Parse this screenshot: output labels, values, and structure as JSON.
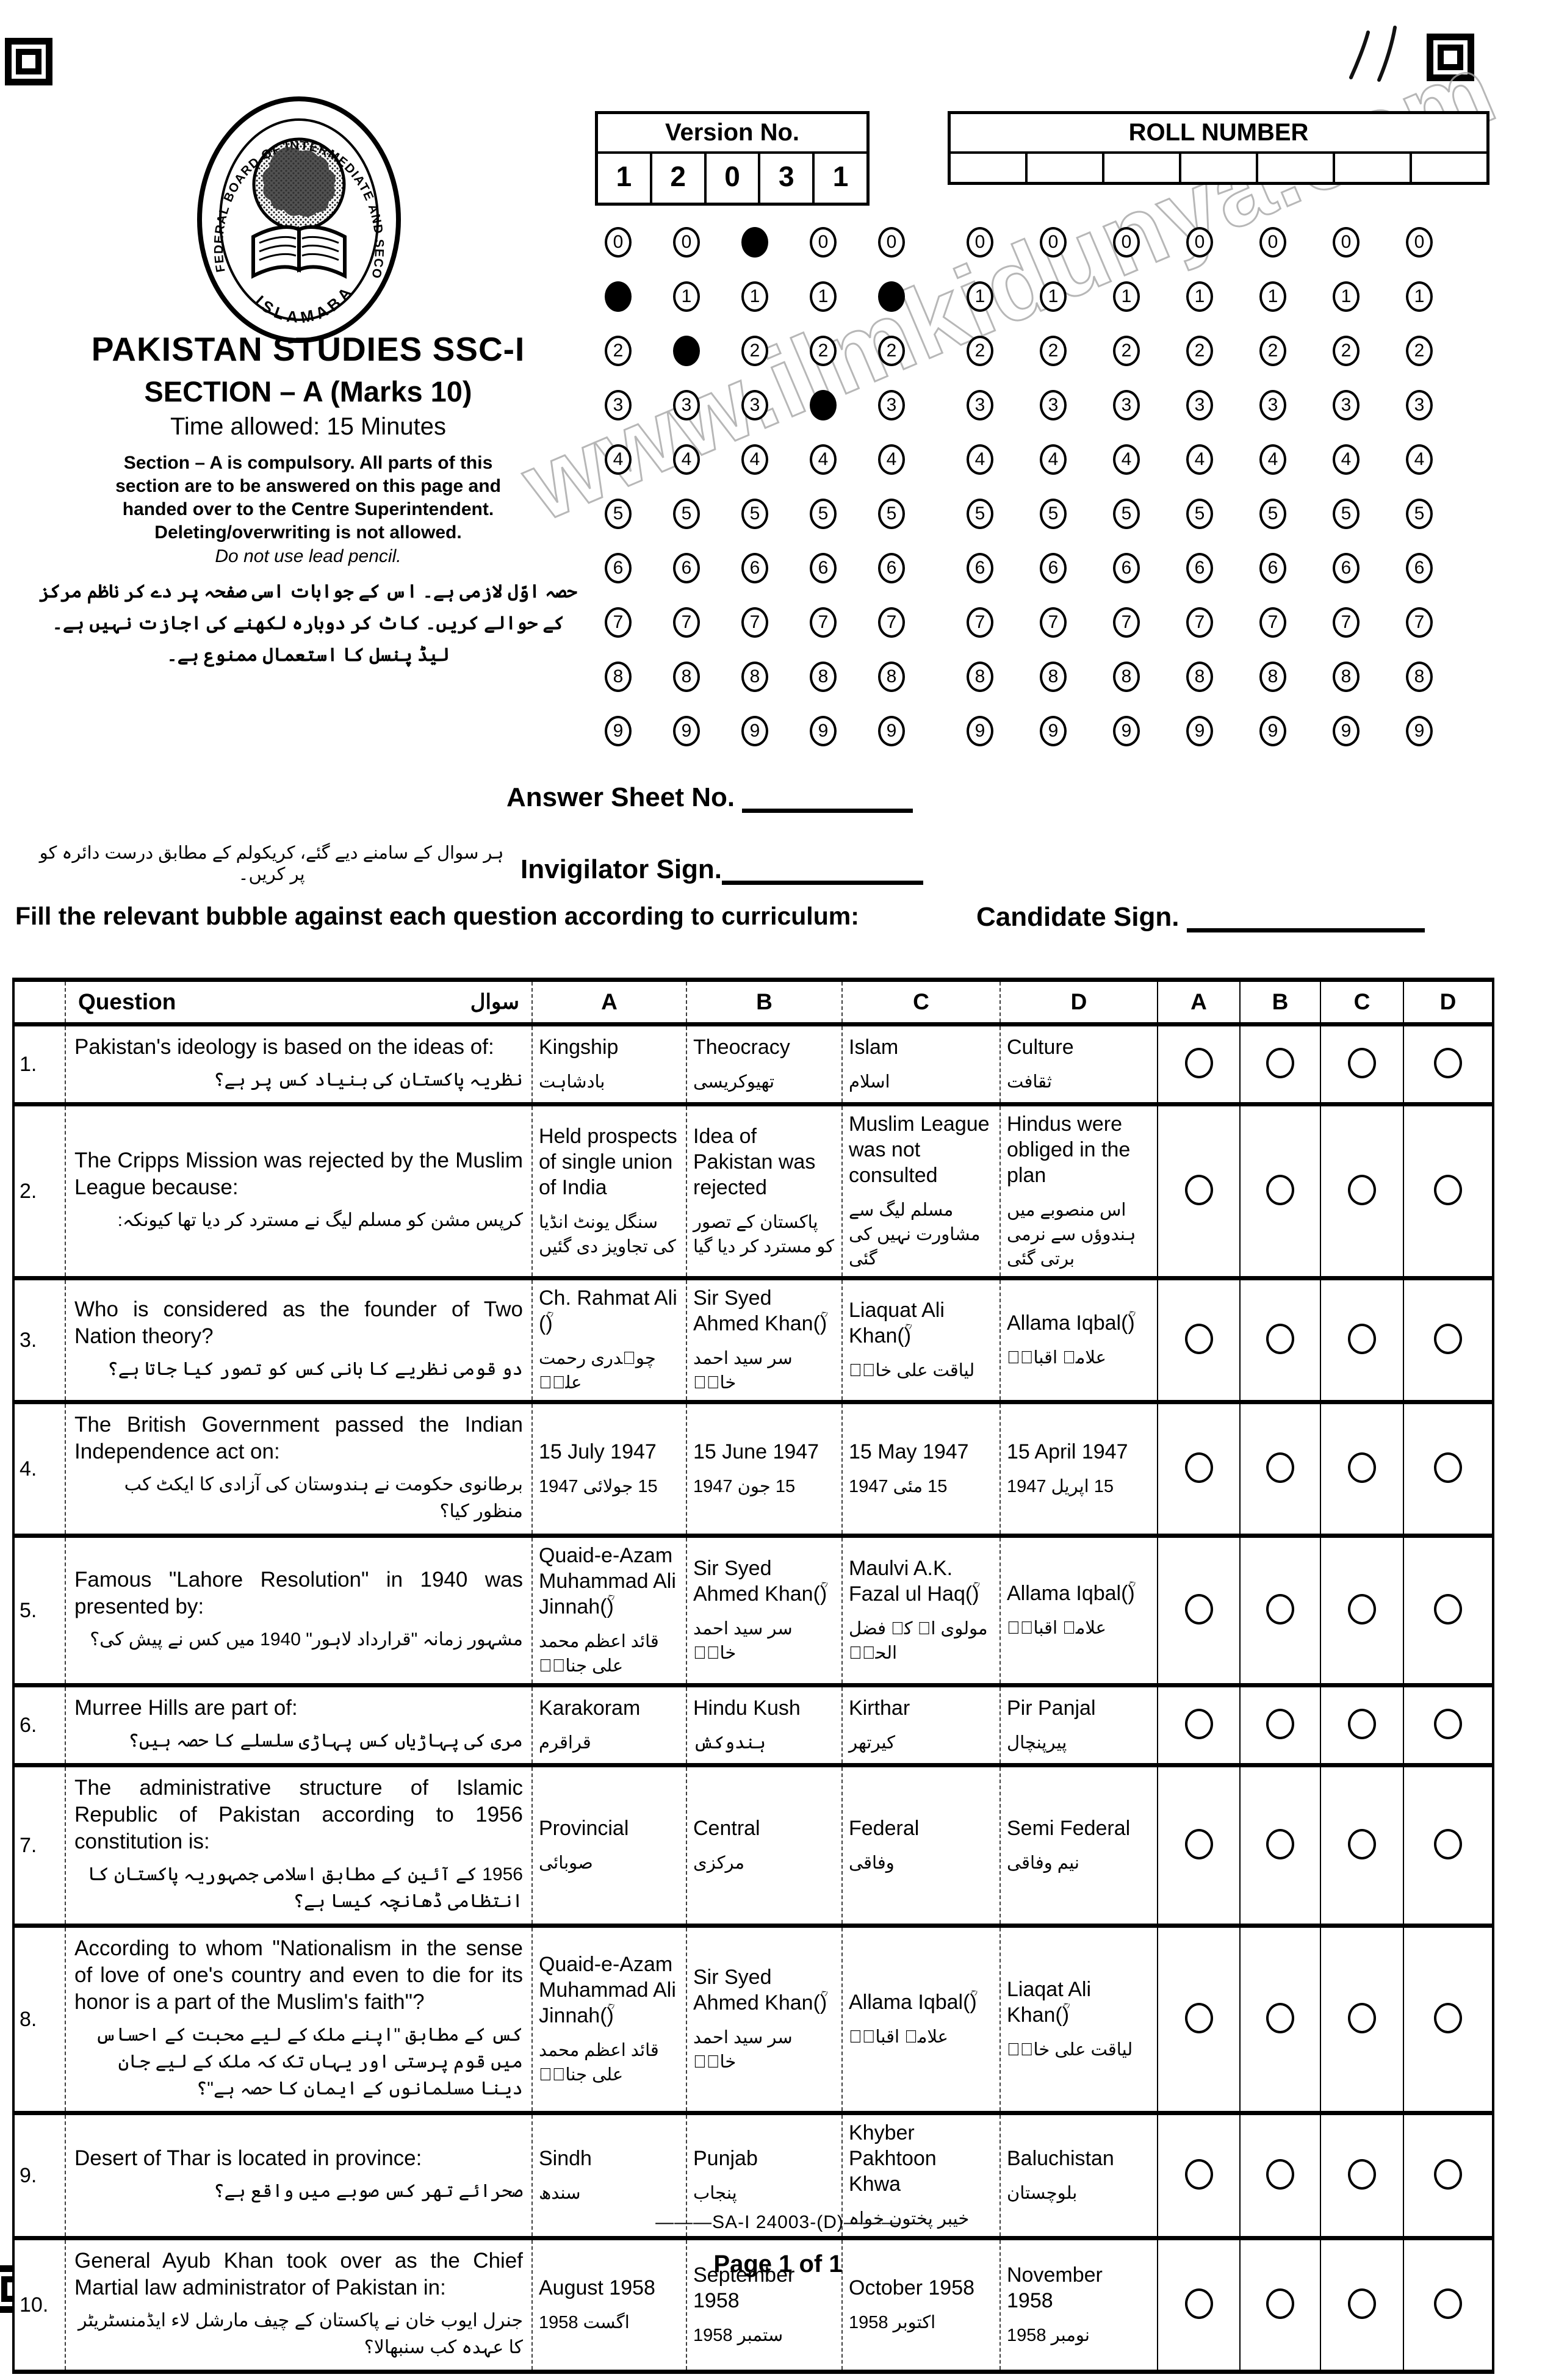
{
  "page": {
    "watermark_text": "www.ilmkidunya.com",
    "handwritten_mark": "١١",
    "footer_code": "———SA-I 24003-(D)———",
    "footer_page": "Page 1 of 1"
  },
  "logo": {
    "ring_text": "FEDERAL BOARD OF INTERMEDIATE AND SECONDARY EDUCATION",
    "ring_bottom": "ISLAMABAD"
  },
  "header": {
    "title": "PAKISTAN STUDIES SSC-I",
    "section": "SECTION – A (Marks 10)",
    "time": "Time allowed: 15 Minutes",
    "instructions_en": [
      "Section – A is compulsory. All parts of this",
      "section are to be answered on this page and",
      "handed over to the Centre Superintendent.",
      "Deleting/overwriting is not allowed."
    ],
    "instructions_italic": "Do not use lead pencil.",
    "instructions_ur": "حصہ اوّل لازمی ہے۔ اس کے جوابات اسی صفحہ پر دے کر ناظم مرکز کے حوالے کریں۔ کاٹ کر دوبارہ لکھنے کی اجازت نہیں ہے۔ لیڈ پنسل کا استعمال ممنوع ہے۔"
  },
  "version": {
    "label": "Version No.",
    "digits": [
      "1",
      "2",
      "0",
      "3",
      "1"
    ]
  },
  "roll": {
    "label": "ROLL NUMBER",
    "cells": 7
  },
  "bubble_digits": [
    "0",
    "1",
    "2",
    "3",
    "4",
    "5",
    "6",
    "7",
    "8",
    "9"
  ],
  "signs": {
    "answer_sheet_label": "Answer Sheet No.",
    "invigilator_ur": "ہر سوال کے سامنے دیے گئے، کریکولم کے مطابق درست دائرہ کو پر کریں۔",
    "invigilator_label": "Invigilator Sign.",
    "fill_instruction": "Fill the relevant bubble against each question according to curriculum:",
    "candidate_label": "Candidate Sign."
  },
  "table": {
    "col_question": "Question",
    "col_question_ur": "سوال",
    "option_cols": [
      "A",
      "B",
      "C",
      "D"
    ],
    "bubble_cols": [
      "A",
      "B",
      "C",
      "D"
    ],
    "questions": [
      {
        "no": "1.",
        "en": "Pakistan's ideology is based on the ideas of:",
        "ur": "نظریہ پاکستان کی بنیاد کس پر ہے؟",
        "options": [
          {
            "en": "Kingship",
            "ur": "بادشاہت"
          },
          {
            "en": "Theocracy",
            "ur": "تھیوکریسی"
          },
          {
            "en": "Islam",
            "ur": "اسلام"
          },
          {
            "en": "Culture",
            "ur": "ثقافت"
          }
        ]
      },
      {
        "no": "2.",
        "en": "The Cripps Mission was rejected by the Muslim League because:",
        "ur": "کرپس مشن کو مسلم لیگ نے مسترد کر دیا تھا کیونکہ:",
        "options": [
          {
            "en": "Held prospects of single union of India",
            "ur": "سنگل یونٹ انڈیا کی تجاویز دی گئیں"
          },
          {
            "en": "Idea of Pakistan was rejected",
            "ur": "پاکستان کے تصور کو مسترد کر دیا گیا"
          },
          {
            "en": "Muslim League was not consulted",
            "ur": "مسلم لیگ سے مشاورت نہیں کی گئی"
          },
          {
            "en": "Hindus were obliged in the plan",
            "ur": "اس منصوبے میں ہندوؤں سے نرمی برتی گئی"
          }
        ]
      },
      {
        "no": "3.",
        "en": "Who is considered as the founder of Two Nation theory?",
        "ur": "دو قومی نظریے کا بانی کس کو تصور کیا جاتا ہے؟",
        "options": [
          {
            "en": "Ch. Rahmat Ali (ؒ)",
            "ur": "چوہدری رحمت علیؒ"
          },
          {
            "en": "Sir Syed Ahmed Khan(ؒ)",
            "ur": "سر سید احمد خانؒ"
          },
          {
            "en": "Liaquat Ali Khan(ؒ)",
            "ur": "لیاقت علی خانؒ"
          },
          {
            "en": "Allama Iqbal(ؒ)",
            "ur": "علامہ اقبالؒ"
          }
        ]
      },
      {
        "no": "4.",
        "en": "The British Government passed the Indian Independence act on:",
        "ur": "برطانوی حکومت نے ہندوستان کی آزادی کا ایکٹ کب منظور کیا؟",
        "options": [
          {
            "en": "15 July 1947",
            "ur": "15 جولائی 1947"
          },
          {
            "en": "15 June 1947",
            "ur": "15 جون 1947"
          },
          {
            "en": "15 May 1947",
            "ur": "15 مئی 1947"
          },
          {
            "en": "15 April 1947",
            "ur": "15 اپریل 1947"
          }
        ]
      },
      {
        "no": "5.",
        "en": "Famous \"Lahore Resolution\" in 1940 was presented by:",
        "ur": "مشہور زمانہ \"قرارداد لاہور\" 1940 میں کس نے پیش کی؟",
        "options": [
          {
            "en": "Quaid-e-Azam Muhammad Ali Jinnah(ؒ)",
            "ur": "قائد اعظم محمد علی جناحؒ"
          },
          {
            "en": "Sir Syed Ahmed Khan(ؒ)",
            "ur": "سر سید احمد خانؒ"
          },
          {
            "en": "Maulvi A.K. Fazal ul Haq(ؒ)",
            "ur": "مولوی اے کے فضل الحقؒ"
          },
          {
            "en": "Allama Iqbal(ؒ)",
            "ur": "علامہ اقبالؒ"
          }
        ]
      },
      {
        "no": "6.",
        "en": "Murree Hills are part of:",
        "ur": "مری کی پہاڑیاں کس پہاڑی سلسلے کا حصہ ہیں؟",
        "options": [
          {
            "en": "Karakoram",
            "ur": "قراقرم"
          },
          {
            "en": "Hindu Kush",
            "ur": "ہندوکش"
          },
          {
            "en": "Kirthar",
            "ur": "کیرتھر"
          },
          {
            "en": "Pir Panjal",
            "ur": "پیرپنچال"
          }
        ]
      },
      {
        "no": "7.",
        "en": "The administrative structure of Islamic Republic of Pakistan according to 1956 constitution is:",
        "ur": "1956 کے آئین کے مطابق اسلامی جمہوریہ پاکستان کا انتظامی ڈھانچہ کیسا ہے؟",
        "options": [
          {
            "en": "Provincial",
            "ur": "صوبائی"
          },
          {
            "en": "Central",
            "ur": "مرکزی"
          },
          {
            "en": "Federal",
            "ur": "وفاقی"
          },
          {
            "en": "Semi Federal",
            "ur": "نیم وفاقی"
          }
        ]
      },
      {
        "no": "8.",
        "en": "According to whom \"Nationalism in the sense of love of one's country and even to die for its honor is a part of the Muslim's faith\"?",
        "ur": "کس کے مطابق \"اپنے ملک کے لیے محبت کے احساس میں قوم پرستی اور یہاں تک کہ ملک کے لیے جان دینا مسلمانوں کے ایمان کا حصہ ہے\"؟",
        "options": [
          {
            "en": "Quaid-e-Azam Muhammad Ali Jinnah(ؒ)",
            "ur": "قائد اعظم محمد علی جناحؒ"
          },
          {
            "en": "Sir Syed Ahmed Khan(ؒ)",
            "ur": "سر سید احمد خانؒ"
          },
          {
            "en": "Allama Iqbal(ؒ)",
            "ur": "علامہ اقبالؒ"
          },
          {
            "en": "Liaqat Ali Khan(ؒ)",
            "ur": "لیاقت علی خانؒ"
          }
        ]
      },
      {
        "no": "9.",
        "en": "Desert of Thar is located in province:",
        "ur": "صحرائے تھر کس صوبے میں واقع ہے؟",
        "options": [
          {
            "en": "Sindh",
            "ur": "سندھ"
          },
          {
            "en": "Punjab",
            "ur": "پنجاب"
          },
          {
            "en": "Khyber Pakhtoon Khwa",
            "ur": "خیبر پختون خواہ"
          },
          {
            "en": "Baluchistan",
            "ur": "بلوچستان"
          }
        ]
      },
      {
        "no": "10.",
        "en": "General Ayub Khan took over as the Chief Martial law administrator of Pakistan in:",
        "ur": "جنرل ایوب خان نے پاکستان کے چیف مارشل لاء ایڈمنسٹریٹر کا عہدہ کب سنبھالا؟",
        "options": [
          {
            "en": "August 1958",
            "ur": "اگست 1958"
          },
          {
            "en": "September 1958",
            "ur": "ستمبر 1958"
          },
          {
            "en": "October 1958",
            "ur": "اکتوبر 1958"
          },
          {
            "en": "November 1958",
            "ur": "نومبر 1958"
          }
        ]
      }
    ]
  }
}
